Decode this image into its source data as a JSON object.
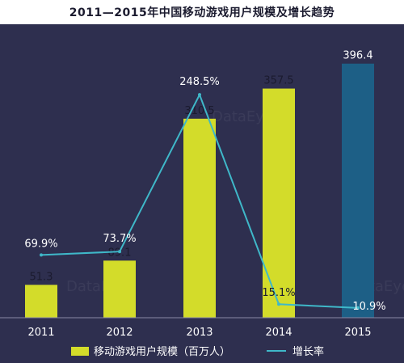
{
  "title": "2011—2015年中国移动游戏用户规模及增长趋势",
  "watermark": "DataEye",
  "colors": {
    "background": "#2e2f4f",
    "bar": "#d3dc2a",
    "bar_forecast": "#1d5f86",
    "line": "#3fb8c9",
    "text": "#ffffff"
  },
  "chart_data": {
    "type": "bar",
    "categories": [
      "2011",
      "2012",
      "2013",
      "2014",
      "2015"
    ],
    "series": [
      {
        "name": "移动游戏用户规模（百万人）",
        "type": "bar",
        "values": [
          51.3,
          89.1,
          310.5,
          357.5,
          396.4
        ],
        "labels": [
          "51.3",
          "89.1",
          "310.5",
          "357.5",
          "396.4"
        ]
      },
      {
        "name": "增长率",
        "type": "line",
        "values": [
          69.9,
          73.7,
          248.5,
          15.1,
          10.9
        ],
        "labels": [
          "69.9%",
          "73.7%",
          "248.5%",
          "15.1%",
          "10.9%"
        ]
      }
    ],
    "ylim": [
      0,
      420
    ],
    "y2lim": [
      0,
      300
    ],
    "legend_position": "bottom",
    "grid": false
  }
}
